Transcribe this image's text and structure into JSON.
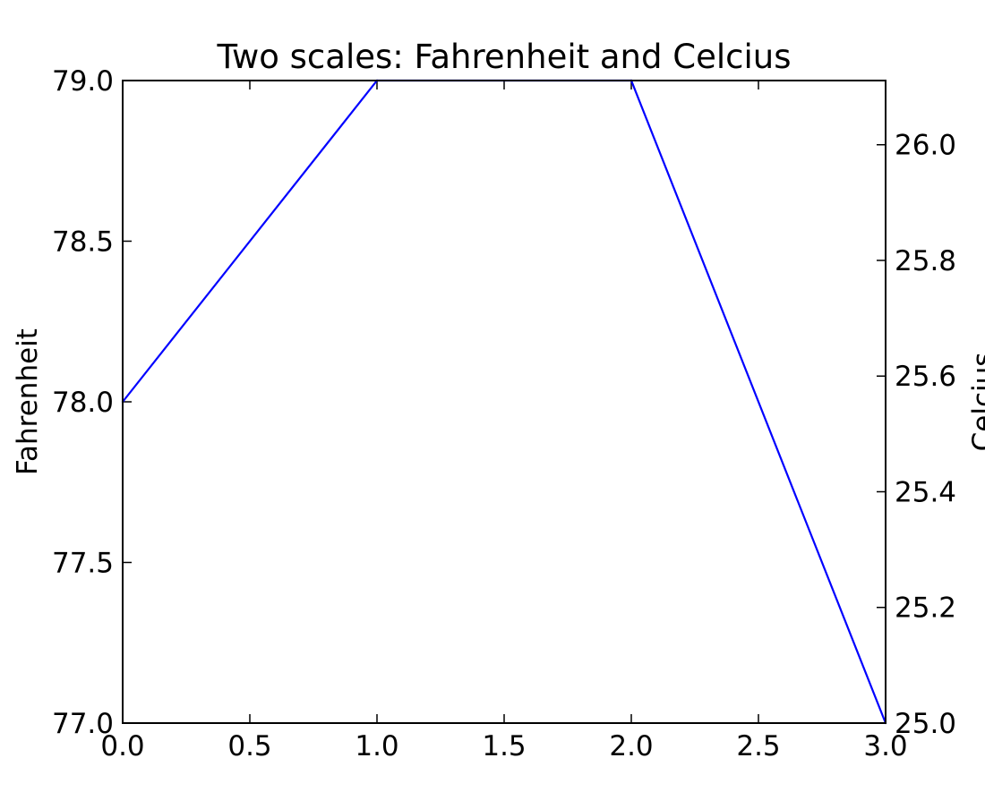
{
  "chart_data": {
    "type": "line",
    "title": "Two scales: Fahrenheit and Celcius",
    "xlabel": "",
    "ylabel": "Fahrenheit",
    "y2label": "Celcius",
    "grid": false,
    "xlim": [
      0.0,
      3.0
    ],
    "ylim": [
      77.0,
      79.0
    ],
    "y2lim": [
      25.0,
      26.111
    ],
    "x_ticks": [
      "0.0",
      "0.5",
      "1.0",
      "1.5",
      "2.0",
      "2.5",
      "3.0"
    ],
    "y_ticks": [
      "77.0",
      "77.5",
      "78.0",
      "78.5",
      "79.0"
    ],
    "y2_ticks": [
      "25.0",
      "25.2",
      "25.4",
      "25.6",
      "25.8",
      "26.0"
    ],
    "series": [
      {
        "x": [
          0,
          1,
          2,
          3
        ],
        "values": [
          78,
          79,
          79,
          77
        ],
        "color": "#0000ff"
      }
    ]
  }
}
